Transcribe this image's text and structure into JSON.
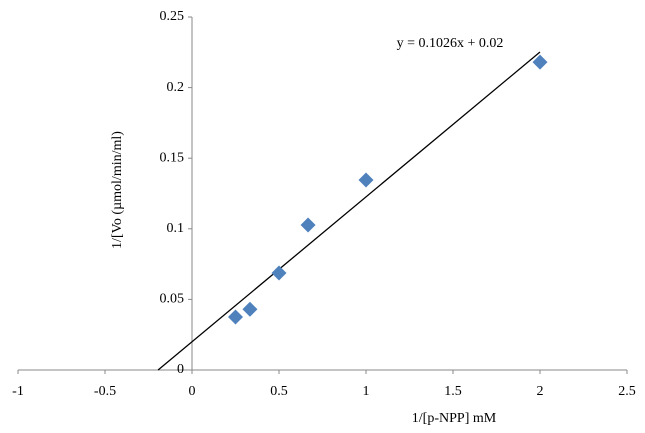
{
  "chart_data": {
    "type": "scatter",
    "x_label": "1/[p-NPP] mM",
    "y_label": "1/[Vo (µmol/min/ml)",
    "series": [
      {
        "color": "#4f81bd",
        "x": [
          0.25,
          0.333,
          0.5,
          0.667,
          1,
          2
        ],
        "values": [
          0.0375,
          0.043,
          0.0687,
          0.1027,
          0.1346,
          0.218
        ]
      }
    ],
    "trendline": {
      "slope": 0.1026,
      "intercept": 0.02,
      "label": "y = 0.1026x + 0.02",
      "color": "#000000"
    },
    "xlim": [
      -1,
      2.5
    ],
    "xticks": [
      -1,
      -0.5,
      0,
      0.5,
      1,
      1.5,
      2,
      2.5
    ],
    "ylim": [
      0,
      0.25
    ],
    "yticks": [
      0,
      0.05,
      0.1,
      0.15,
      0.2,
      0.25
    ],
    "grid": false
  }
}
